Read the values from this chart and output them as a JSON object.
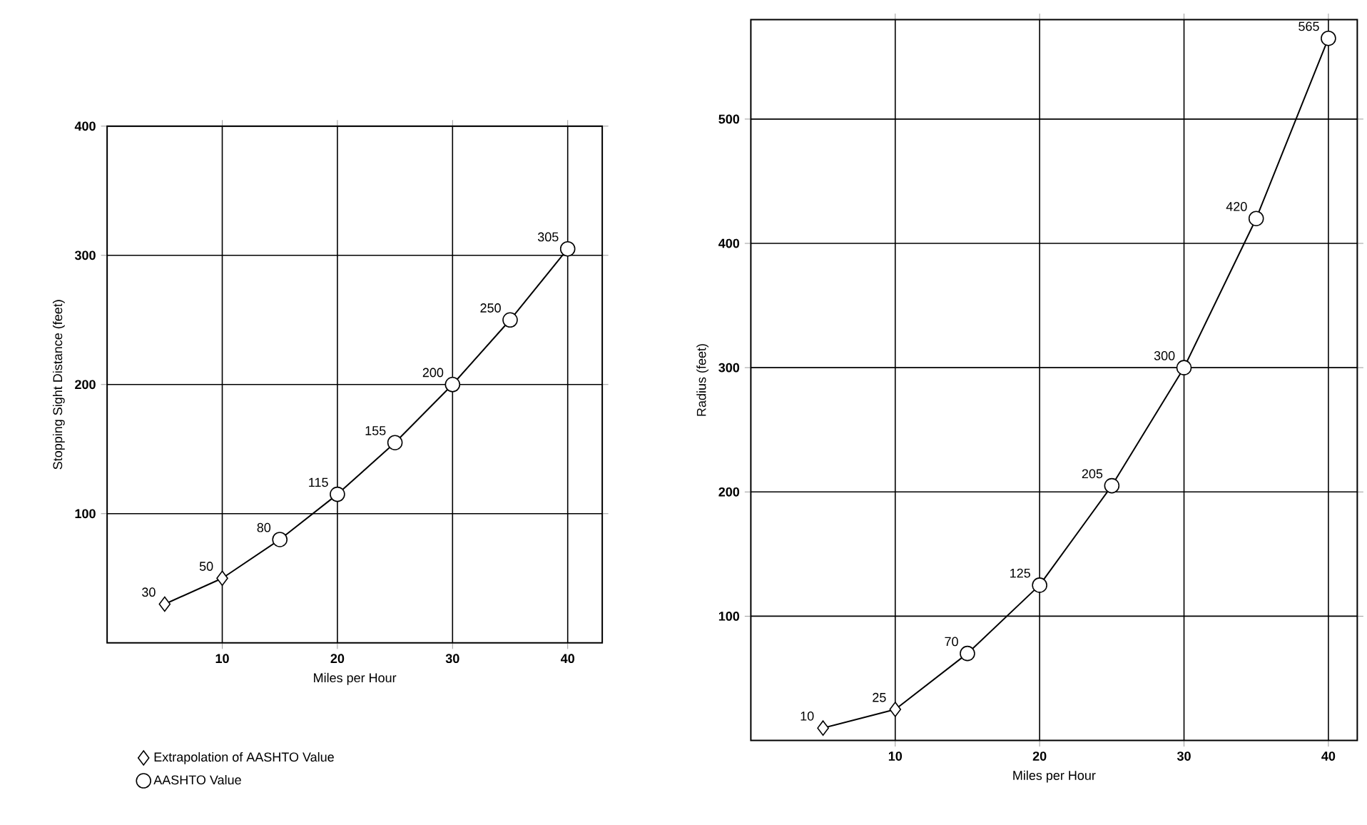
{
  "chart_data": [
    {
      "type": "line",
      "xlabel": "Miles per Hour",
      "ylabel": "Stopping Sight Distance (feet)",
      "xlim": [
        0,
        43
      ],
      "ylim": [
        0,
        400
      ],
      "xticks": [
        10,
        20,
        30,
        40
      ],
      "yticks": [
        100,
        200,
        300,
        400
      ],
      "grid": true,
      "legend": "bottom",
      "series": [
        {
          "color": "#000000",
          "marker": "none",
          "x": [
            5,
            10,
            15,
            20,
            25,
            30,
            35,
            40
          ],
          "values": [
            30,
            50,
            80,
            115,
            155,
            200,
            250,
            305
          ],
          "value_labels": [
            "30",
            "50",
            "80",
            "115",
            "155",
            "200",
            "250",
            "305"
          ]
        },
        {
          "type": "scatter",
          "name": "Extrapolation of AASHTO Value",
          "color": "#000000",
          "marker": "diamond",
          "x": [
            5,
            10
          ],
          "values": [
            30,
            50
          ]
        },
        {
          "type": "scatter",
          "name": "AASHTO Value",
          "color": "#000000",
          "marker": "circle",
          "x": [
            15,
            20,
            25,
            30,
            35,
            40
          ],
          "values": [
            80,
            115,
            155,
            200,
            250,
            305
          ]
        }
      ]
    },
    {
      "type": "line",
      "xlabel": "Miles per Hour",
      "ylabel": "Radius (feet)",
      "xlim": [
        0,
        42
      ],
      "ylim": [
        0,
        580
      ],
      "xticks": [
        10,
        20,
        30,
        40
      ],
      "yticks": [
        100,
        200,
        300,
        400,
        500
      ],
      "grid": true,
      "series": [
        {
          "color": "#000000",
          "marker": "none",
          "x": [
            5,
            10,
            15,
            20,
            25,
            30,
            35,
            40
          ],
          "values": [
            10,
            25,
            70,
            125,
            205,
            300,
            420,
            565
          ],
          "value_labels": [
            "10",
            "25",
            "70",
            "125",
            "205",
            "300",
            "420",
            "565"
          ]
        },
        {
          "type": "scatter",
          "color": "#000000",
          "marker": "diamond",
          "x": [
            5,
            10
          ],
          "values": [
            10,
            25
          ]
        },
        {
          "type": "scatter",
          "color": "#000000",
          "marker": "circle",
          "x": [
            15,
            20,
            25,
            30,
            35,
            40
          ],
          "values": [
            70,
            125,
            205,
            300,
            420,
            565
          ]
        }
      ]
    }
  ]
}
